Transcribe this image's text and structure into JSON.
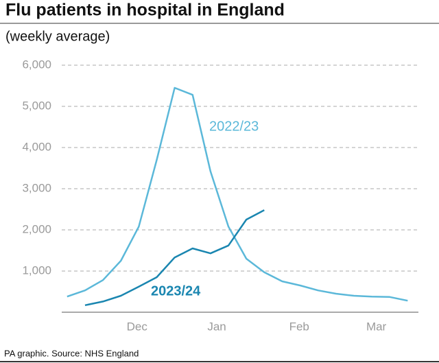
{
  "chart_data": {
    "type": "line",
    "title": "Flu patients in hospital in England",
    "subtitle": "(weekly average)",
    "source": "PA graphic. Source: NHS England",
    "x": [
      0,
      1,
      2,
      3,
      4,
      5,
      6,
      7,
      8,
      9,
      10,
      11,
      12,
      13,
      14,
      15,
      16,
      17,
      18,
      19
    ],
    "series": [
      {
        "name": "2022/23",
        "color": "#5bb8d9",
        "values": [
          380,
          530,
          780,
          1250,
          2080,
          3700,
          5450,
          5280,
          3420,
          2080,
          1300,
          970,
          750,
          650,
          530,
          450,
          400,
          380,
          370,
          280
        ]
      },
      {
        "name": "2023/24",
        "color": "#1a86b0",
        "values": [
          null,
          170,
          260,
          400,
          620,
          850,
          1330,
          1550,
          1430,
          1620,
          2250,
          2480,
          null,
          null,
          null,
          null,
          null,
          null,
          null,
          null
        ]
      }
    ],
    "xlim": [
      -0.3,
      19.6
    ],
    "xticks": [
      {
        "value": 3.9,
        "label": "Dec"
      },
      {
        "value": 8.35,
        "label": "Jan"
      },
      {
        "value": 12.95,
        "label": "Feb"
      },
      {
        "value": 17.25,
        "label": "Mar"
      }
    ],
    "ylim": [
      0,
      6000
    ],
    "yticks": [
      {
        "value": 1000,
        "label": "1,000"
      },
      {
        "value": 2000,
        "label": "2,000"
      },
      {
        "value": 3000,
        "label": "3,000"
      },
      {
        "value": 4000,
        "label": "4,000"
      },
      {
        "value": 5000,
        "label": "5,000"
      },
      {
        "value": 6000,
        "label": "6,000"
      }
    ],
    "grid": true
  }
}
